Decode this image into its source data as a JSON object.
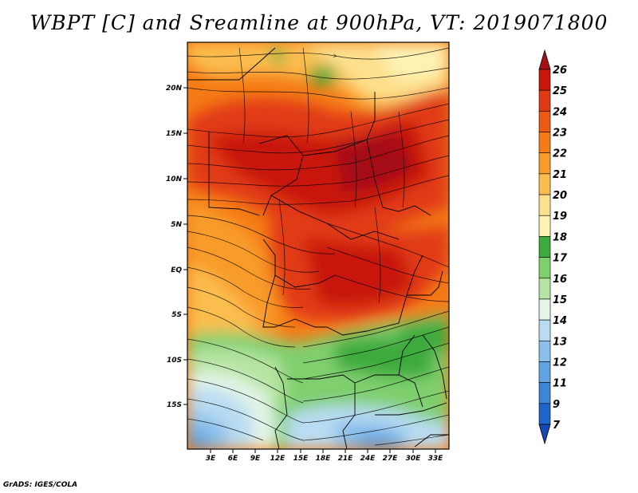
{
  "title": "WBPT [C] and Sreamline at 900hPa, VT: 2019071800",
  "footer": "GrADS: IGES/COLA",
  "latitude_labels": [
    "20N",
    "15N",
    "10N",
    "5N",
    "EQ",
    "5S",
    "10S",
    "15S"
  ],
  "longitude_labels": [
    "3E",
    "6E",
    "9E",
    "12E",
    "15E",
    "18E",
    "21E",
    "24E",
    "27E",
    "30E",
    "33E"
  ],
  "colorbar": {
    "labels": [
      "26",
      "25",
      "24",
      "23",
      "22",
      "21",
      "20",
      "19",
      "18",
      "17",
      "16",
      "15",
      "14",
      "13",
      "12",
      "11",
      "9",
      "7"
    ],
    "colors": [
      "#a50f15",
      "#c8170f",
      "#e13a12",
      "#ec5a14",
      "#f57b16",
      "#f89b2a",
      "#fbbd4e",
      "#fde08d",
      "#fdf2b4",
      "#3daa3d",
      "#7fcf6e",
      "#b6e4a2",
      "#e4f5e8",
      "#b9dcf2",
      "#8cc0ea",
      "#62a3e1",
      "#3e85d8",
      "#1f66cc",
      "#1648b5"
    ]
  }
}
